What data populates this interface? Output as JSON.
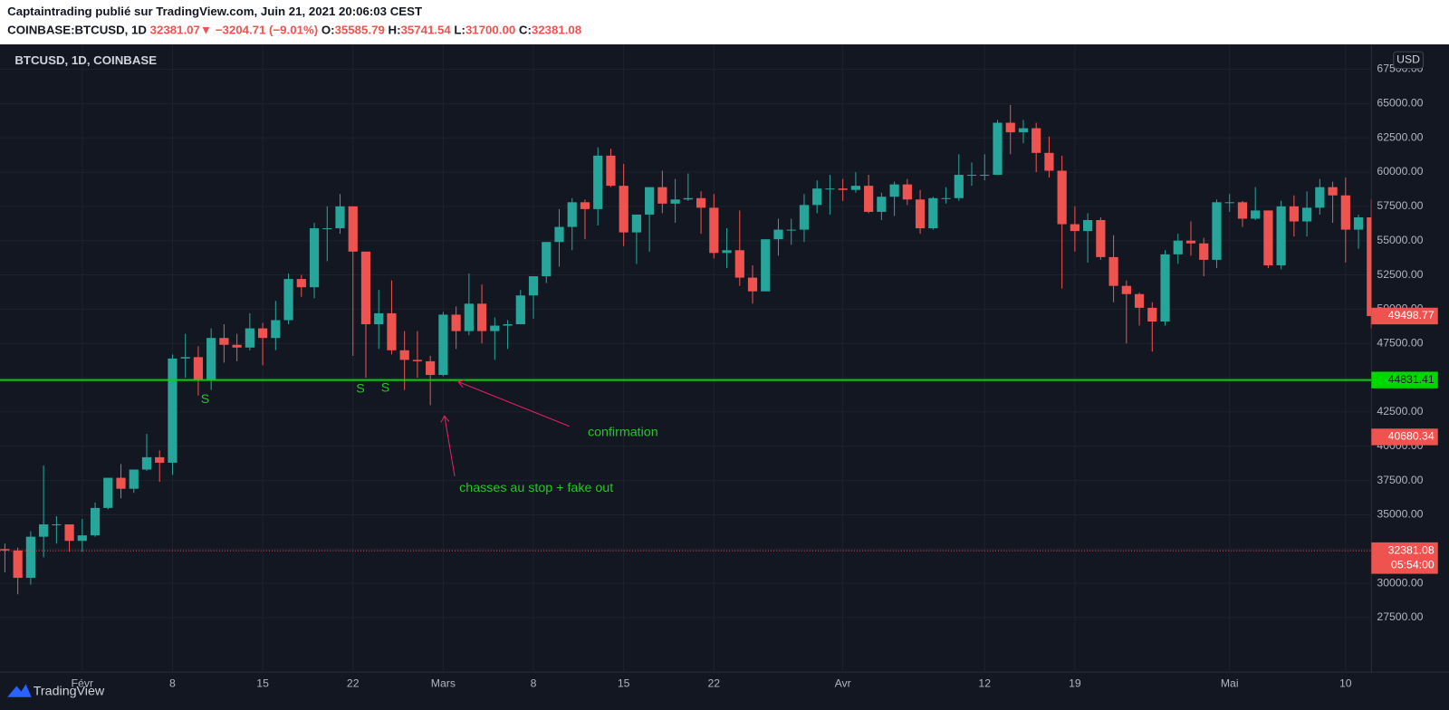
{
  "header": {
    "author_line": "Captaintrading publié sur TradingView.com, Juin 21, 2021 20:06:03 CEST",
    "symbol": "COINBASE:BTCUSD, 1D",
    "last": "32381.07",
    "arrow": "▼",
    "change": "−3204.71 (−9.01%)",
    "o_label": "O:",
    "o": "35585.79",
    "h_label": "H:",
    "h": "35741.54",
    "l_label": "L:",
    "l": "31700.00",
    "c_label": "C:",
    "c": "32381.08"
  },
  "chart_data": {
    "type": "candlestick",
    "legend": "BTCUSD, 1D, COINBASE",
    "currency": "USD",
    "up_color": "#26a69a",
    "down_color": "#ef5350",
    "grid": true,
    "categories": [
      null,
      null,
      null,
      null,
      null,
      null,
      "Févr",
      null,
      null,
      null,
      null,
      null,
      null,
      "8",
      null,
      null,
      null,
      null,
      null,
      null,
      "15",
      null,
      null,
      null,
      null,
      null,
      null,
      "22",
      null,
      null,
      null,
      null,
      null,
      null,
      "Mars",
      null,
      null,
      null,
      null,
      null,
      null,
      "8",
      null,
      null,
      null,
      null,
      null,
      null,
      "15",
      null,
      null,
      null,
      null,
      null,
      null,
      "22",
      null,
      null,
      null,
      null,
      null,
      null,
      null,
      null,
      null,
      "Avr",
      null,
      null,
      null,
      null,
      null,
      null,
      null,
      null,
      null,
      null,
      "12",
      null,
      null,
      null,
      null,
      null,
      null,
      "19",
      null,
      null,
      null,
      null,
      null,
      null,
      null,
      null,
      null,
      null,
      null,
      "Mai",
      null,
      null,
      null,
      null,
      null,
      null,
      null,
      null,
      "10",
      null,
      null
    ],
    "open": [
      32500,
      32400,
      30400,
      33400,
      34300,
      34300,
      33100,
      33500,
      35500,
      37700,
      36900,
      38300,
      39200,
      38800,
      46400,
      46500,
      44800,
      47900,
      47400,
      47200,
      48600,
      47900,
      49200,
      52200,
      51600,
      55900,
      55900,
      57500,
      54200,
      48900,
      49700,
      47000,
      46300,
      46200,
      45200,
      49600,
      48400,
      50400,
      48400,
      48800,
      48900,
      51000,
      52400,
      54900,
      56000,
      57800,
      57300,
      61200,
      59000,
      55600,
      56900,
      58900,
      57700,
      58000,
      58100,
      57400,
      54100,
      54300,
      52300,
      51300,
      55100,
      55800,
      55800,
      57600,
      58800,
      58800,
      58700,
      59000,
      57100,
      58200,
      59100,
      58000,
      55900,
      58100,
      58100,
      59800,
      59800,
      59800,
      63600,
      62900,
      63200,
      61400,
      60100,
      56200,
      55700,
      56500,
      53800,
      51700,
      51100,
      50100,
      49100,
      54000,
      55000,
      54800,
      53600,
      57800,
      57800,
      56600,
      57200,
      53200,
      57500,
      56400,
      57400,
      58900,
      58300,
      55800,
      56700
    ],
    "high": [
      32900,
      32600,
      33800,
      38600,
      34900,
      34300,
      34700,
      35900,
      37700,
      38700,
      38300,
      40900,
      39700,
      46700,
      48200,
      47300,
      48600,
      48900,
      48200,
      49700,
      49000,
      50600,
      52600,
      52500,
      56300,
      57500,
      58400,
      57500,
      54200,
      51400,
      52100,
      48400,
      48400,
      46600,
      49800,
      50200,
      52600,
      51800,
      49400,
      49200,
      51400,
      52400,
      54900,
      57300,
      58100,
      58000,
      61800,
      61700,
      60600,
      56900,
      58900,
      60100,
      59500,
      59900,
      58600,
      58400,
      55900,
      57200,
      53200,
      55100,
      56600,
      56600,
      58400,
      59400,
      59800,
      59500,
      60000,
      59800,
      58500,
      59300,
      59500,
      58700,
      58200,
      58900,
      61300,
      60700,
      61300,
      63800,
      64900,
      63800,
      63600,
      62600,
      61200,
      57500,
      57000,
      56700,
      55400,
      52100,
      51200,
      50500,
      54300,
      55500,
      56400,
      55200,
      58000,
      58400,
      57900,
      58900,
      57200,
      57900,
      58300,
      58600,
      59500,
      59300,
      59600,
      56900,
      58000
    ],
    "low": [
      30800,
      29200,
      29900,
      31900,
      32900,
      32300,
      32300,
      33400,
      35400,
      36200,
      36600,
      38200,
      37400,
      37900,
      45000,
      43700,
      44100,
      46100,
      46200,
      47000,
      45900,
      47000,
      48900,
      50900,
      50800,
      53500,
      55500,
      46600,
      45000,
      47100,
      46700,
      44100,
      45000,
      43000,
      45100,
      47100,
      48100,
      47500,
      46300,
      47100,
      48900,
      49300,
      51900,
      53100,
      54300,
      55100,
      56100,
      58900,
      54600,
      53300,
      54200,
      57000,
      56300,
      57900,
      55500,
      53700,
      53000,
      51700,
      50400,
      51300,
      53900,
      54700,
      54900,
      57000,
      56900,
      57900,
      58500,
      57000,
      56500,
      56800,
      57600,
      55500,
      55800,
      57700,
      57900,
      59000,
      59400,
      59800,
      61300,
      62100,
      60000,
      59600,
      51500,
      54200,
      53400,
      53600,
      50500,
      47500,
      48800,
      46900,
      48800,
      53300,
      53900,
      52400,
      53000,
      57100,
      56000,
      56500,
      53000,
      52900,
      55300,
      55300,
      56900,
      56300,
      53400,
      54400,
      48600
    ],
    "close": [
      32400,
      30400,
      33400,
      34300,
      34300,
      33100,
      33500,
      35500,
      37700,
      36900,
      38300,
      39200,
      38800,
      46400,
      46500,
      44800,
      47900,
      47400,
      47200,
      48600,
      47900,
      49200,
      52200,
      51600,
      55900,
      55900,
      57500,
      54200,
      48900,
      49700,
      47000,
      46300,
      46200,
      45200,
      49600,
      48400,
      50400,
      48400,
      48800,
      48900,
      51000,
      52400,
      54900,
      56000,
      57800,
      57300,
      61200,
      59000,
      55600,
      56900,
      58900,
      57700,
      58000,
      58100,
      57400,
      54100,
      54300,
      52300,
      51300,
      55100,
      55800,
      55800,
      57600,
      58800,
      58800,
      58700,
      59000,
      57100,
      58200,
      59100,
      58000,
      55900,
      58100,
      58100,
      59800,
      59800,
      59800,
      63600,
      62900,
      63200,
      61400,
      60100,
      56200,
      55700,
      56500,
      53800,
      51700,
      51100,
      50100,
      49100,
      54000,
      55000,
      54800,
      53600,
      57800,
      57800,
      56600,
      57200,
      53200,
      57500,
      56400,
      57400,
      58900,
      58300,
      55800,
      56700,
      49500
    ],
    "ylim": [
      23525,
      69316
    ],
    "yticks": [
      {
        "value": 27500,
        "label": "27500.00"
      },
      {
        "value": 30000,
        "label": "30000.00"
      },
      {
        "value": 32500,
        "label": "32500.00"
      },
      {
        "value": 35000,
        "label": "35000.00"
      },
      {
        "value": 37500,
        "label": "37500.00"
      },
      {
        "value": 40000,
        "label": "40000.00"
      },
      {
        "value": 42500,
        "label": "42500.00"
      },
      {
        "value": 45000,
        "label": "45000.00"
      },
      {
        "value": 47500,
        "label": "47500.00"
      },
      {
        "value": 50000,
        "label": "50000.00"
      },
      {
        "value": 52500,
        "label": "52500.00"
      },
      {
        "value": 55000,
        "label": "55000.00"
      },
      {
        "value": 57500,
        "label": "57500.00"
      },
      {
        "value": 60000,
        "label": "60000.00"
      },
      {
        "value": 62500,
        "label": "62500.00"
      },
      {
        "value": 65000,
        "label": "65000.00"
      },
      {
        "value": 67500,
        "label": "67500.00"
      }
    ],
    "hline": {
      "value": 44831.41,
      "color": "#00d600"
    },
    "price_line": {
      "value": 32381.08,
      "color": "#ef5350"
    },
    "price_labels": [
      {
        "value": 49498.77,
        "color": "#ef5350"
      },
      {
        "value": 44831.41,
        "color": "#00d600"
      },
      {
        "value": 40680.34,
        "color": "#ef5350"
      },
      {
        "value": 32381.08,
        "color": "#ef5350",
        "sublabel": "05:54:00"
      }
    ],
    "annotations": [
      "S",
      "S",
      "S",
      "confirmation",
      "chasses au stop + fake out"
    ]
  },
  "footer": {
    "brand": "TradingView"
  }
}
